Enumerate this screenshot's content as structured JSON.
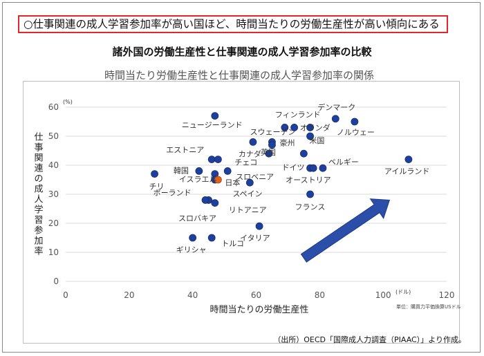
{
  "headline": "○仕事関連の成人学習参加率が高い国ほど、時間当たりの労働生産性が高い傾向にある",
  "main_title": "諸外国の労働生産性と仕事関連の成人学習参加率の比較",
  "source": "（出所）OECD「国際成人力調査（PIAAC）」より作成。",
  "colors": {
    "point": "#1f3f9c",
    "point_stroke": "#16306f",
    "highlight": "#e0621e",
    "arrow": "#2b4fa8",
    "headline_border": "#e2262a",
    "grid": "#d9d9d9"
  },
  "chart_data": {
    "type": "scatter",
    "title": "時間当たり労働生産性と仕事関連の成人学習参加率の関係",
    "xlabel": "時間当たりの労働生産性",
    "ylabel": "仕事関連の成人学習参加率",
    "x_unit": "(ドル)",
    "y_unit": "(%)",
    "note": "単位：購買力平価換算USドル",
    "xlim": [
      0,
      120
    ],
    "ylim": [
      0,
      60
    ],
    "xticks": [
      0,
      20,
      40,
      60,
      80,
      100,
      120
    ],
    "yticks": [
      0,
      10,
      20,
      30,
      40,
      50,
      60
    ],
    "grid": "horizontal",
    "trend_arrow": {
      "from": [
        75,
        8
      ],
      "to": [
        102,
        28
      ]
    },
    "points": [
      {
        "label": "フィンランド",
        "x": 69,
        "y": 53,
        "anchor": "left",
        "dx": -14,
        "dy": -15
      },
      {
        "label": "デンマーク",
        "x": 85,
        "y": 56,
        "anchor": "left",
        "dx": -26,
        "dy": -13
      },
      {
        "label": "オランダ",
        "x": 72,
        "y": 53
      },
      {
        "label": "ノルウェー",
        "x": 91,
        "y": 55,
        "anchor": "left",
        "dx": -26,
        "dy": 19
      },
      {
        "label": "ニュージーランド",
        "x": 47,
        "y": 57,
        "anchor": "left",
        "dx": -48,
        "dy": 17
      },
      {
        "label": "スウェーデン",
        "x": 77,
        "y": 53,
        "anchor": "left",
        "dx": -87,
        "dy": 10
      },
      {
        "label": "",
        "x": 77,
        "y": 50
      },
      {
        "label": "カナダ",
        "x": 59,
        "y": 48,
        "anchor": "left",
        "dx": -21,
        "dy": 21
      },
      {
        "label": "豪州",
        "x": 65,
        "y": 48,
        "anchor": "left",
        "dx": 11,
        "dy": 5
      },
      {
        "label": "",
        "x": 65,
        "y": 47
      },
      {
        "label": "米国",
        "x": 75,
        "y": 44,
        "anchor": "left",
        "dx": 8,
        "dy": -15
      },
      {
        "label": "英国",
        "x": 64,
        "y": 44,
        "anchor": "left",
        "dx": -12,
        "dy": 2
      },
      {
        "label": "ドイツ",
        "x": 77,
        "y": 39,
        "anchor": "left",
        "dx": -41,
        "dy": 3
      },
      {
        "label": "ベルギー",
        "x": 81,
        "y": 39,
        "anchor": "left",
        "dx": 8,
        "dy": -5
      },
      {
        "label": "オーストリア",
        "x": 78,
        "y": 39,
        "anchor": "left",
        "dx": -40,
        "dy": 21
      },
      {
        "label": "エストニア",
        "x": 46,
        "y": 42,
        "anchor": "left",
        "dx": -66,
        "dy": -10
      },
      {
        "label": "チェコ",
        "x": 48,
        "y": 42,
        "anchor": "left",
        "dx": 24,
        "dy": 8
      },
      {
        "label": "韓国",
        "x": 42,
        "y": 38,
        "anchor": "left",
        "dx": -37,
        "dy": 3
      },
      {
        "label": "スロベニア",
        "x": 51,
        "y": 38,
        "anchor": "left",
        "dx": 12,
        "dy": 12
      },
      {
        "label": "",
        "x": 47,
        "y": 37
      },
      {
        "label": "チリ",
        "x": 28,
        "y": 37,
        "anchor": "left",
        "dx": -8,
        "dy": 22
      },
      {
        "label": "イスラエル",
        "x": 47,
        "y": 35,
        "anchor": "left",
        "dx": -52,
        "dy": 3
      },
      {
        "label": "日本",
        "x": 48,
        "y": 35,
        "highlight": true,
        "anchor": "left",
        "dx": 10,
        "dy": 8
      },
      {
        "label": "スペイン",
        "x": 58,
        "y": 34,
        "anchor": "left",
        "dx": -25,
        "dy": 20
      },
      {
        "label": "アイルランド",
        "x": 108,
        "y": 42,
        "anchor": "left",
        "dx": -35,
        "dy": 21
      },
      {
        "label": "ポーランド",
        "x": 45,
        "y": 28,
        "anchor": "left",
        "dx": -80,
        "dy": -7
      },
      {
        "label": "スロバキア",
        "x": 44,
        "y": 28,
        "anchor": "left",
        "dx": -39,
        "dy": 30
      },
      {
        "label": "リトアニア",
        "x": 47,
        "y": 27,
        "anchor": "left",
        "dx": 20,
        "dy": 14
      },
      {
        "label": "フランス",
        "x": 77,
        "y": 30,
        "anchor": "left",
        "dx": -22,
        "dy": 22
      },
      {
        "label": "イタリア",
        "x": 61,
        "y": 19,
        "anchor": "left",
        "dx": -28,
        "dy": 21
      },
      {
        "label": "ギリシャ",
        "x": 40,
        "y": 15,
        "anchor": "left",
        "dx": -24,
        "dy": 21
      },
      {
        "label": "トルコ",
        "x": 46,
        "y": 15,
        "anchor": "left",
        "dx": 14,
        "dy": 12
      }
    ]
  }
}
